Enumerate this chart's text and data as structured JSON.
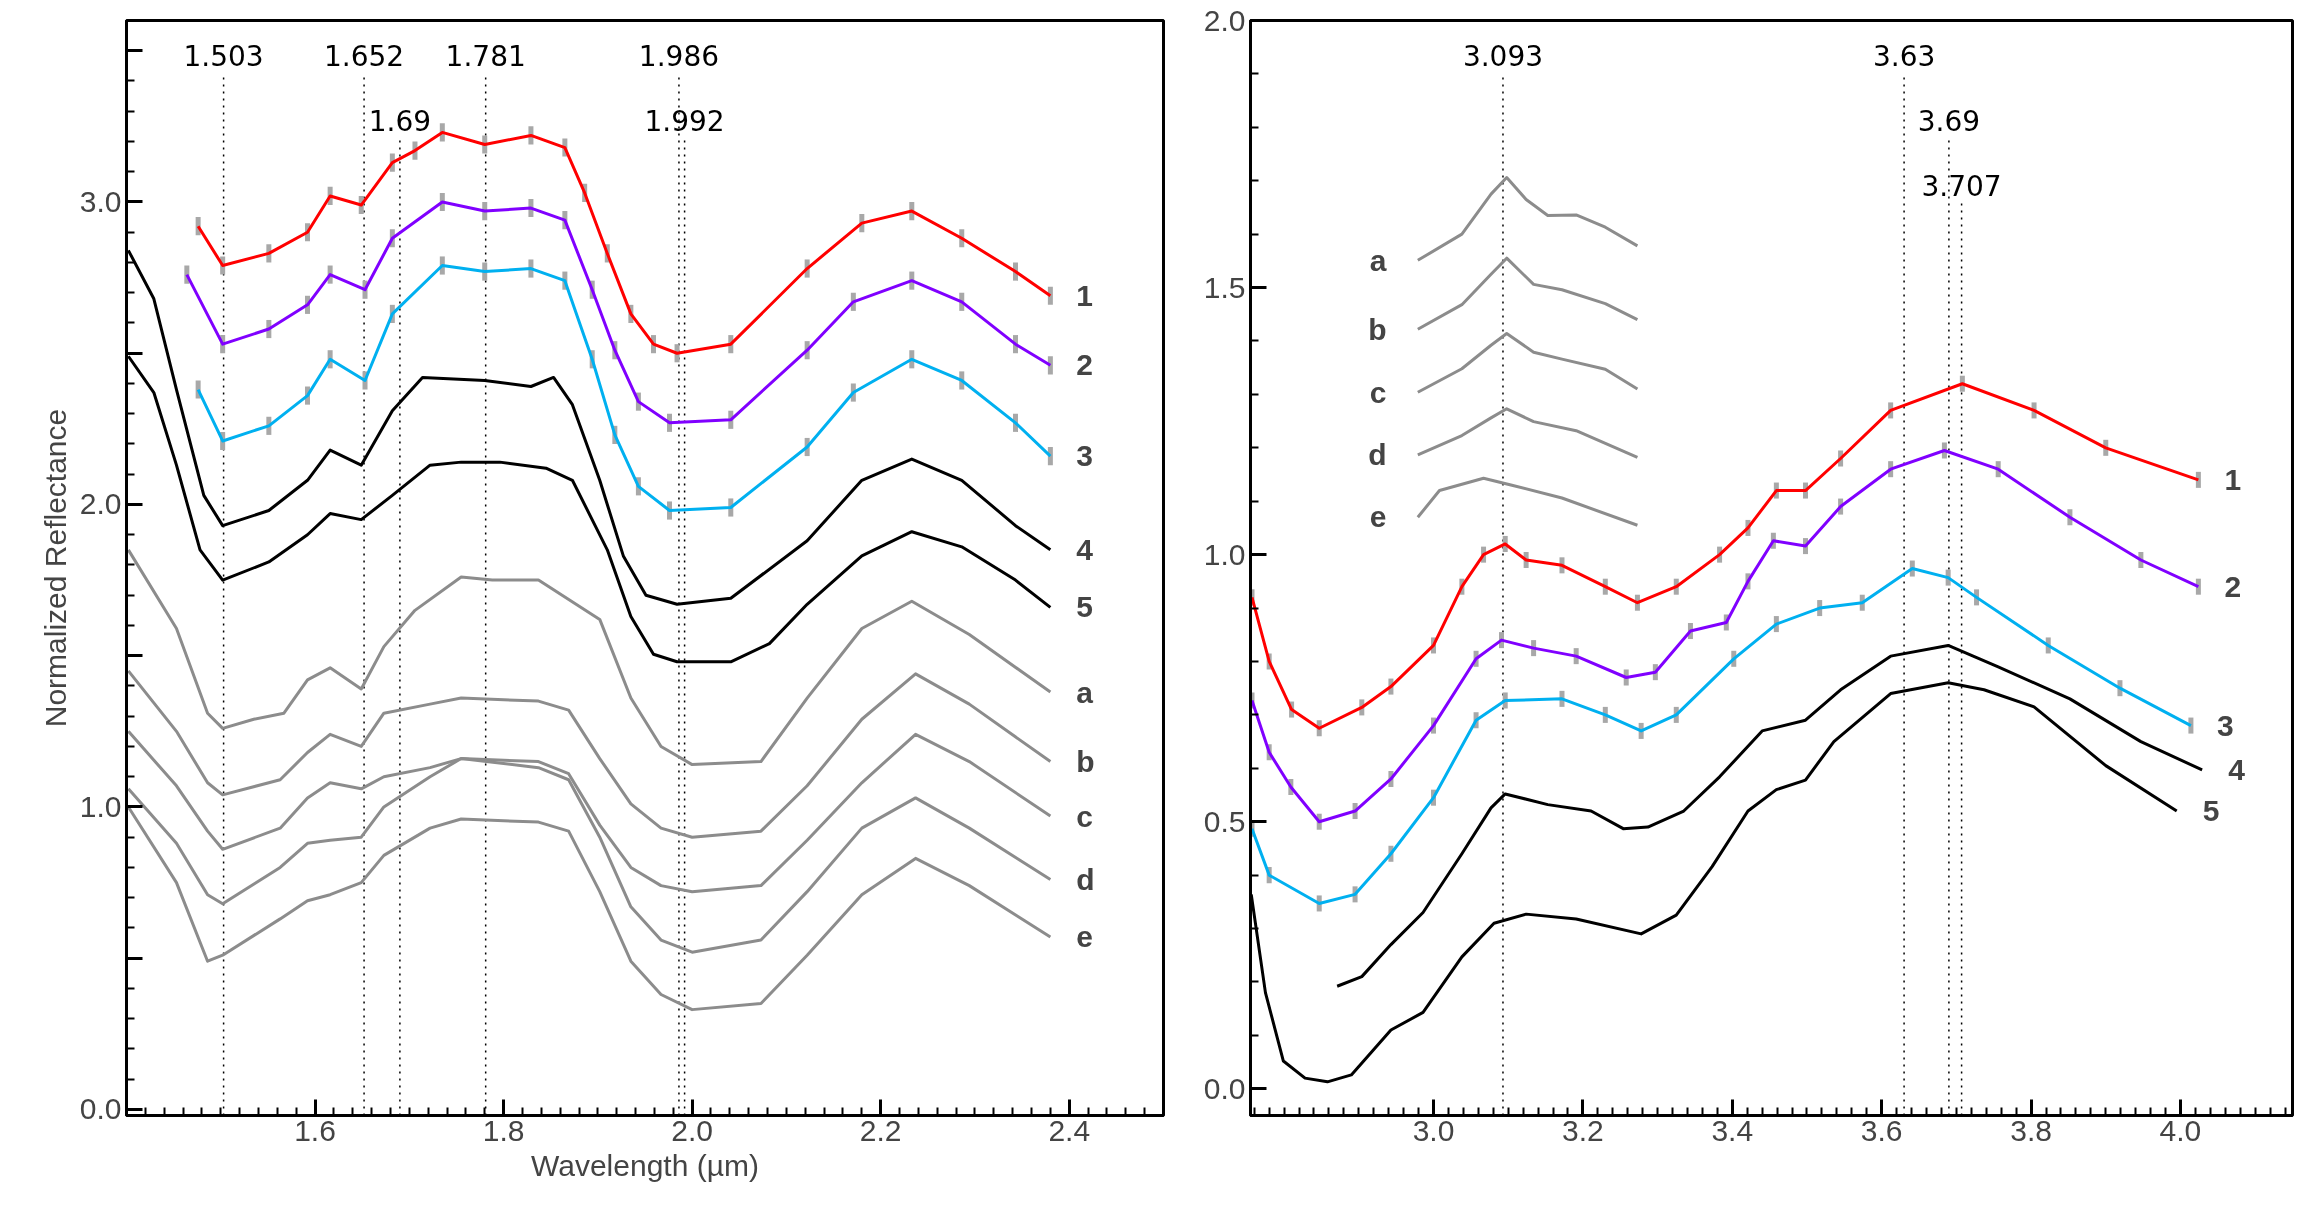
{
  "chart_data": [
    {
      "type": "line",
      "xlabel": "Wavelength (µm)",
      "ylabel": "Normalized Reflectance",
      "xlim": [
        1.4,
        2.5
      ],
      "ylim": [
        -0.02,
        3.6
      ],
      "xticks": [
        {
          "value": 1.6,
          "label": "1.6"
        },
        {
          "value": 1.8,
          "label": "1.8"
        },
        {
          "value": 2,
          "label": "2.0"
        },
        {
          "value": 2.2,
          "label": "2.2"
        },
        {
          "value": 2.4,
          "label": "2.4"
        }
      ],
      "yticks": [
        {
          "value": 0,
          "label": "0.0"
        },
        {
          "value": 0.5,
          "label": null
        },
        {
          "value": 1,
          "label": "1.0"
        },
        {
          "value": 1.5,
          "label": null
        },
        {
          "value": 2,
          "label": "2.0"
        },
        {
          "value": 2.5,
          "label": null
        },
        {
          "value": 3,
          "label": "3.0"
        },
        {
          "value": 3.5,
          "label": null
        }
      ],
      "ref_lines": [
        {
          "axis": "x",
          "value": 1.503,
          "label": "1.503",
          "line_style": "dotted",
          "color": "#000000"
        },
        {
          "axis": "x",
          "value": 1.652,
          "label": "1.652",
          "line_style": "dotted",
          "color": "#000000"
        },
        {
          "axis": "x",
          "value": 1.69,
          "label": "1.69",
          "line_style": "dotted",
          "color": "#000000"
        },
        {
          "axis": "x",
          "value": 1.781,
          "label": "1.781",
          "line_style": "dotted",
          "color": "#000000"
        },
        {
          "axis": "x",
          "value": 1.986,
          "label": "1.986",
          "line_style": "dotted",
          "color": "#000000"
        },
        {
          "axis": "x",
          "value": 1.992,
          "label": "1.992",
          "line_style": "dotted",
          "color": "#000000"
        }
      ],
      "series": [
        {
          "name": "1",
          "color": "#ff0000",
          "x": [
            1.476,
            1.502,
            1.551,
            1.592,
            1.616,
            1.649,
            1.682,
            1.706,
            1.735,
            1.78,
            1.829,
            1.865,
            1.886,
            1.91,
            1.935,
            1.959,
            1.984,
            2.041,
            2.122,
            2.18,
            2.233,
            2.286,
            2.343,
            2.38
          ],
          "values": [
            2.92,
            2.79,
            2.83,
            2.9,
            3.02,
            2.99,
            3.13,
            3.17,
            3.23,
            3.19,
            3.22,
            3.18,
            3.03,
            2.83,
            2.63,
            2.53,
            2.5,
            2.53,
            2.78,
            2.93,
            2.97,
            2.88,
            2.77,
            2.69
          ],
          "errors": [
            0.03,
            0.03,
            0.03,
            0.03,
            0.03,
            0.03,
            0.03,
            0.03,
            0.03,
            0.03,
            0.03,
            0.03,
            0.03,
            0.03,
            0.03,
            0.03,
            0.03,
            0.03,
            0.03,
            0.03,
            0.03,
            0.03,
            0.03,
            0.03
          ]
        },
        {
          "name": "2",
          "color": "#8000ff",
          "x": [
            1.464,
            1.502,
            1.551,
            1.592,
            1.616,
            1.653,
            1.682,
            1.735,
            1.78,
            1.829,
            1.865,
            1.894,
            1.918,
            1.943,
            1.976,
            2.041,
            2.122,
            2.171,
            2.233,
            2.286,
            2.343,
            2.38
          ],
          "values": [
            2.76,
            2.53,
            2.58,
            2.66,
            2.76,
            2.71,
            2.88,
            3.0,
            2.97,
            2.98,
            2.94,
            2.71,
            2.51,
            2.34,
            2.27,
            2.28,
            2.51,
            2.67,
            2.74,
            2.67,
            2.53,
            2.46
          ],
          "errors": [
            0.03,
            0.03,
            0.03,
            0.03,
            0.03,
            0.03,
            0.03,
            0.03,
            0.03,
            0.03,
            0.03,
            0.03,
            0.03,
            0.03,
            0.03,
            0.03,
            0.03,
            0.03,
            0.03,
            0.03,
            0.03,
            0.03
          ]
        },
        {
          "name": "3",
          "color": "#00b0f0",
          "x": [
            1.476,
            1.502,
            1.551,
            1.592,
            1.616,
            1.653,
            1.682,
            1.735,
            1.78,
            1.829,
            1.865,
            1.894,
            1.918,
            1.943,
            1.976,
            2.041,
            2.122,
            2.171,
            2.233,
            2.286,
            2.343,
            2.38
          ],
          "values": [
            2.38,
            2.21,
            2.26,
            2.36,
            2.48,
            2.41,
            2.63,
            2.79,
            2.77,
            2.78,
            2.74,
            2.48,
            2.23,
            2.06,
            1.98,
            1.99,
            2.19,
            2.37,
            2.48,
            2.41,
            2.27,
            2.16
          ],
          "errors": [
            0.03,
            0.03,
            0.03,
            0.03,
            0.03,
            0.03,
            0.03,
            0.03,
            0.03,
            0.03,
            0.03,
            0.03,
            0.03,
            0.03,
            0.03,
            0.03,
            0.03,
            0.03,
            0.03,
            0.03,
            0.03,
            0.03
          ]
        },
        {
          "name": "4",
          "color": "#000000",
          "x": [
            1.402,
            1.429,
            1.453,
            1.482,
            1.502,
            1.551,
            1.592,
            1.616,
            1.649,
            1.682,
            1.714,
            1.78,
            1.829,
            1.853,
            1.873,
            1.902,
            1.927,
            1.951,
            1.984,
            2.041,
            2.122,
            2.18,
            2.233,
            2.286,
            2.343,
            2.38
          ],
          "values": [
            2.84,
            2.68,
            2.38,
            2.03,
            1.93,
            1.98,
            2.08,
            2.18,
            2.13,
            2.31,
            2.42,
            2.41,
            2.39,
            2.42,
            2.33,
            2.08,
            1.83,
            1.7,
            1.67,
            1.69,
            1.88,
            2.08,
            2.15,
            2.08,
            1.93,
            1.85
          ]
        },
        {
          "name": "5",
          "color": "#000000",
          "x": [
            1.402,
            1.429,
            1.453,
            1.478,
            1.502,
            1.551,
            1.592,
            1.616,
            1.649,
            1.682,
            1.722,
            1.755,
            1.796,
            1.845,
            1.873,
            1.91,
            1.935,
            1.959,
            1.984,
            2.041,
            2.082,
            2.122,
            2.18,
            2.233,
            2.286,
            2.343,
            2.38
          ],
          "values": [
            2.49,
            2.37,
            2.13,
            1.85,
            1.75,
            1.81,
            1.9,
            1.97,
            1.95,
            2.03,
            2.13,
            2.14,
            2.14,
            2.12,
            2.08,
            1.85,
            1.63,
            1.505,
            1.48,
            1.48,
            1.54,
            1.67,
            1.83,
            1.91,
            1.86,
            1.75,
            1.66
          ]
        },
        {
          "name": "a",
          "color": "#8c8c8c",
          "x": [
            1.402,
            1.453,
            1.486,
            1.502,
            1.535,
            1.567,
            1.592,
            1.616,
            1.649,
            1.673,
            1.706,
            1.755,
            1.788,
            1.837,
            1.902,
            1.935,
            1.967,
            2.0,
            2.073,
            2.122,
            2.18,
            2.233,
            2.294,
            2.38
          ],
          "values": [
            1.85,
            1.59,
            1.31,
            1.26,
            1.29,
            1.31,
            1.42,
            1.46,
            1.39,
            1.53,
            1.65,
            1.76,
            1.75,
            1.75,
            1.62,
            1.36,
            1.2,
            1.14,
            1.15,
            1.36,
            1.59,
            1.68,
            1.57,
            1.38
          ]
        },
        {
          "name": "b",
          "color": "#8c8c8c",
          "x": [
            1.402,
            1.453,
            1.486,
            1.502,
            1.563,
            1.592,
            1.616,
            1.649,
            1.673,
            1.722,
            1.755,
            1.837,
            1.869,
            1.902,
            1.935,
            1.967,
            2.0,
            2.073,
            2.122,
            2.18,
            2.237,
            2.294,
            2.38
          ],
          "values": [
            1.45,
            1.25,
            1.08,
            1.04,
            1.09,
            1.18,
            1.24,
            1.2,
            1.31,
            1.34,
            1.36,
            1.35,
            1.32,
            1.16,
            1.01,
            0.93,
            0.9,
            0.92,
            1.07,
            1.29,
            1.44,
            1.34,
            1.15
          ]
        },
        {
          "name": "c",
          "color": "#8c8c8c",
          "x": [
            1.402,
            1.453,
            1.486,
            1.502,
            1.563,
            1.592,
            1.616,
            1.649,
            1.673,
            1.722,
            1.755,
            1.837,
            1.869,
            1.902,
            1.935,
            1.967,
            2.0,
            2.073,
            2.122,
            2.18,
            2.237,
            2.294,
            2.38
          ],
          "values": [
            1.25,
            1.07,
            0.92,
            0.86,
            0.93,
            1.03,
            1.08,
            1.06,
            1.1,
            1.13,
            1.16,
            1.15,
            1.11,
            0.94,
            0.8,
            0.74,
            0.72,
            0.74,
            0.89,
            1.08,
            1.24,
            1.15,
            0.97
          ]
        },
        {
          "name": "d",
          "color": "#8c8c8c",
          "x": [
            1.402,
            1.453,
            1.486,
            1.502,
            1.563,
            1.592,
            1.616,
            1.649,
            1.673,
            1.722,
            1.755,
            1.837,
            1.869,
            1.902,
            1.935,
            1.967,
            2.0,
            2.073,
            2.122,
            2.18,
            2.237,
            2.294,
            2.38
          ],
          "values": [
            1.06,
            0.88,
            0.71,
            0.68,
            0.8,
            0.88,
            0.89,
            0.9,
            1.0,
            1.1,
            1.16,
            1.13,
            1.09,
            0.9,
            0.67,
            0.56,
            0.52,
            0.56,
            0.72,
            0.93,
            1.03,
            0.93,
            0.76
          ]
        },
        {
          "name": "e",
          "color": "#8c8c8c",
          "x": [
            1.402,
            1.453,
            1.486,
            1.502,
            1.563,
            1.592,
            1.616,
            1.649,
            1.673,
            1.722,
            1.755,
            1.837,
            1.869,
            1.902,
            1.935,
            1.967,
            2.0,
            2.073,
            2.122,
            2.18,
            2.237,
            2.294,
            2.38
          ],
          "values": [
            1.0,
            0.75,
            0.49,
            0.51,
            0.63,
            0.69,
            0.71,
            0.75,
            0.84,
            0.93,
            0.96,
            0.95,
            0.92,
            0.72,
            0.49,
            0.38,
            0.33,
            0.35,
            0.51,
            0.71,
            0.83,
            0.74,
            0.57
          ]
        }
      ]
    },
    {
      "type": "line",
      "xlim": [
        2.755,
        4.15
      ],
      "ylim": [
        -0.05,
        2.0
      ],
      "xticks": [
        {
          "value": 3,
          "label": "3.0"
        },
        {
          "value": 3.2,
          "label": "3.2"
        },
        {
          "value": 3.4,
          "label": "3.4"
        },
        {
          "value": 3.6,
          "label": "3.6"
        },
        {
          "value": 3.8,
          "label": "3.8"
        },
        {
          "value": 4,
          "label": "4.0"
        }
      ],
      "yticks": [
        {
          "value": 0,
          "label": "0.0"
        },
        {
          "value": 0.5,
          "label": "0.5"
        },
        {
          "value": 1,
          "label": "1.0"
        },
        {
          "value": 1.5,
          "label": "1.5"
        },
        {
          "value": 2,
          "label": "2.0"
        }
      ],
      "ref_lines": [
        {
          "axis": "x",
          "value": 3.093,
          "label": "3.093",
          "line_style": "dotted",
          "color": "#000000"
        },
        {
          "axis": "x",
          "value": 3.63,
          "label": "3.63",
          "line_style": "dotted",
          "color": "#000000"
        },
        {
          "axis": "x",
          "value": 3.69,
          "label": "3.69",
          "line_style": "dotted",
          "color": "#000000"
        },
        {
          "axis": "x",
          "value": 3.707,
          "label": "3.707",
          "line_style": "dotted",
          "color": "#000000"
        }
      ],
      "series": [
        {
          "name": "1",
          "color": "#ff0000",
          "x": [
            2.757,
            2.78,
            2.81,
            2.847,
            2.904,
            2.943,
            3.0,
            3.038,
            3.067,
            3.096,
            3.124,
            3.172,
            3.23,
            3.273,
            3.325,
            3.383,
            3.421,
            3.459,
            3.498,
            3.545,
            3.612,
            3.708,
            3.804,
            3.9,
            4.024
          ],
          "values": [
            0.92,
            0.8,
            0.71,
            0.675,
            0.714,
            0.753,
            0.83,
            0.94,
            1.0,
            1.02,
            0.99,
            0.98,
            0.94,
            0.91,
            0.94,
            1.0,
            1.05,
            1.12,
            1.12,
            1.18,
            1.27,
            1.32,
            1.27,
            1.2,
            1.14
          ],
          "errors": [
            0.015,
            0.015,
            0.015,
            0.015,
            0.015,
            0.015,
            0.015,
            0.015,
            0.015,
            0.015,
            0.015,
            0.015,
            0.015,
            0.015,
            0.015,
            0.015,
            0.015,
            0.015,
            0.015,
            0.015,
            0.015,
            0.015,
            0.015,
            0.015,
            0.015
          ]
        },
        {
          "name": "2",
          "color": "#8000ff",
          "x": [
            2.757,
            2.78,
            2.809,
            2.847,
            2.895,
            2.943,
            3.0,
            3.057,
            3.091,
            3.134,
            3.191,
            3.258,
            3.297,
            3.344,
            3.392,
            3.421,
            3.455,
            3.498,
            3.545,
            3.612,
            3.684,
            3.756,
            3.852,
            3.947,
            4.024
          ],
          "values": [
            0.727,
            0.63,
            0.565,
            0.5,
            0.52,
            0.58,
            0.68,
            0.805,
            0.84,
            0.825,
            0.81,
            0.77,
            0.78,
            0.857,
            0.873,
            0.95,
            1.026,
            1.016,
            1.09,
            1.16,
            1.195,
            1.16,
            1.07,
            0.99,
            0.94
          ],
          "errors": [
            0.015,
            0.015,
            0.015,
            0.015,
            0.015,
            0.015,
            0.015,
            0.015,
            0.015,
            0.015,
            0.015,
            0.015,
            0.015,
            0.015,
            0.015,
            0.015,
            0.015,
            0.015,
            0.015,
            0.015,
            0.015,
            0.015,
            0.015,
            0.015,
            0.015
          ]
        },
        {
          "name": "3",
          "color": "#00b0f0",
          "x": [
            2.757,
            2.78,
            2.847,
            2.895,
            2.943,
            3.0,
            3.057,
            3.096,
            3.172,
            3.23,
            3.278,
            3.325,
            3.402,
            3.459,
            3.517,
            3.574,
            3.641,
            3.689,
            3.727,
            3.823,
            3.919,
            4.014
          ],
          "values": [
            0.487,
            0.4,
            0.347,
            0.364,
            0.44,
            0.545,
            0.69,
            0.727,
            0.73,
            0.7,
            0.67,
            0.7,
            0.805,
            0.87,
            0.9,
            0.91,
            0.974,
            0.957,
            0.92,
            0.83,
            0.75,
            0.68
          ],
          "errors": [
            0.015,
            0.015,
            0.015,
            0.015,
            0.015,
            0.015,
            0.015,
            0.015,
            0.015,
            0.015,
            0.015,
            0.015,
            0.015,
            0.015,
            0.015,
            0.015,
            0.015,
            0.015,
            0.015,
            0.015,
            0.015,
            0.015
          ]
        },
        {
          "name": "4",
          "color": "#000000",
          "x": [
            2.871,
            2.904,
            2.943,
            2.986,
            3.038,
            3.077,
            3.096,
            3.153,
            3.211,
            3.254,
            3.287,
            3.335,
            3.383,
            3.44,
            3.498,
            3.545,
            3.612,
            3.689,
            3.756,
            3.852,
            3.947,
            4.029
          ],
          "values": [
            0.192,
            0.21,
            0.27,
            0.33,
            0.44,
            0.526,
            0.552,
            0.532,
            0.52,
            0.487,
            0.49,
            0.52,
            0.584,
            0.67,
            0.69,
            0.747,
            0.81,
            0.83,
            0.79,
            0.73,
            0.65,
            0.597
          ]
        },
        {
          "name": "5",
          "color": "#000000",
          "x": [
            2.756,
            2.775,
            2.799,
            2.828,
            2.858,
            2.89,
            2.943,
            2.986,
            3.038,
            3.081,
            3.124,
            3.191,
            3.278,
            3.325,
            3.373,
            3.421,
            3.459,
            3.498,
            3.536,
            3.574,
            3.612,
            3.689,
            3.737,
            3.804,
            3.9,
            3.995
          ],
          "values": [
            0.364,
            0.18,
            0.052,
            0.02,
            0.013,
            0.026,
            0.11,
            0.143,
            0.247,
            0.31,
            0.327,
            0.318,
            0.29,
            0.325,
            0.416,
            0.52,
            0.56,
            0.578,
            0.65,
            0.695,
            0.74,
            0.76,
            0.747,
            0.715,
            0.605,
            0.52
          ]
        },
        {
          "name": "a",
          "color": "#8c8c8c",
          "x": [
            2.979,
            3.038,
            3.077,
            3.098,
            3.124,
            3.153,
            3.191,
            3.23,
            3.273
          ],
          "values": [
            1.551,
            1.6,
            1.675,
            1.706,
            1.665,
            1.635,
            1.636,
            1.613,
            1.578
          ]
        },
        {
          "name": "b",
          "color": "#8c8c8c",
          "x": [
            2.979,
            3.038,
            3.077,
            3.098,
            3.134,
            3.172,
            3.23,
            3.273
          ],
          "values": [
            1.422,
            1.468,
            1.525,
            1.555,
            1.506,
            1.496,
            1.47,
            1.44
          ]
        },
        {
          "name": "c",
          "color": "#8c8c8c",
          "x": [
            2.979,
            3.038,
            3.077,
            3.098,
            3.134,
            3.172,
            3.23,
            3.273
          ],
          "values": [
            1.304,
            1.348,
            1.392,
            1.414,
            1.379,
            1.366,
            1.347,
            1.31
          ]
        },
        {
          "name": "d",
          "color": "#8c8c8c",
          "x": [
            2.979,
            3.038,
            3.077,
            3.098,
            3.134,
            3.191,
            3.273
          ],
          "values": [
            1.187,
            1.223,
            1.256,
            1.273,
            1.249,
            1.232,
            1.182
          ]
        },
        {
          "name": "e",
          "color": "#8c8c8c",
          "x": [
            2.979,
            3.008,
            3.067,
            3.105,
            3.172,
            3.273
          ],
          "values": [
            1.07,
            1.12,
            1.143,
            1.13,
            1.106,
            1.055
          ]
        }
      ]
    }
  ]
}
